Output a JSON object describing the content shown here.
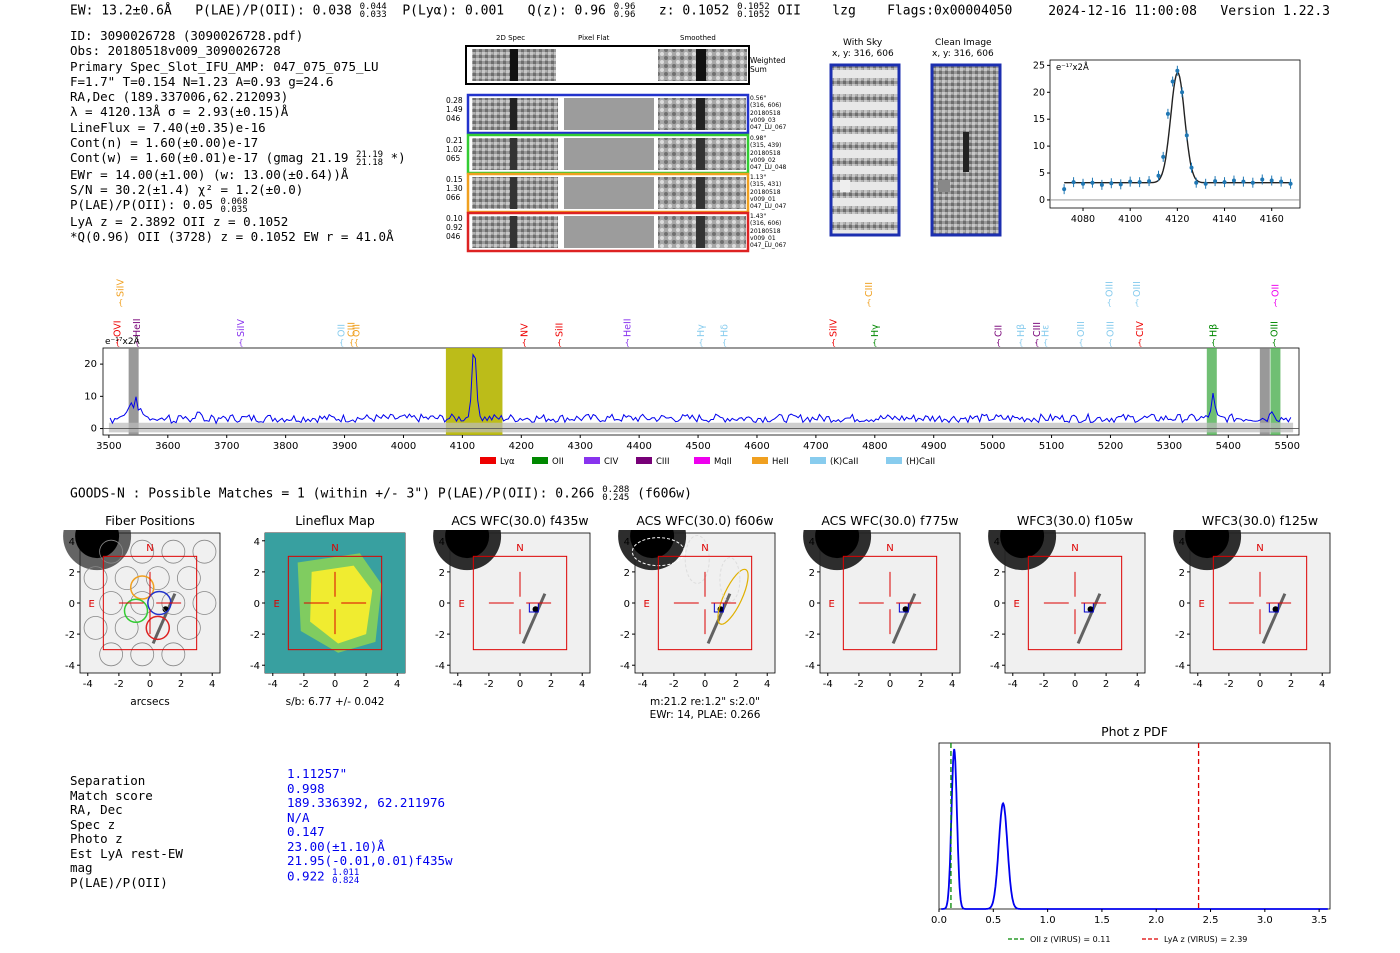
{
  "header": {
    "ew": "EW: 13.2±0.6Å",
    "plae_label": "P(LAE)/P(OII): 0.038",
    "plae_hi": "0.044",
    "plae_lo": "0.033",
    "plya": "P(Lyα): 0.001",
    "qz_label": "Q(z): 0.96",
    "qz_hi": "0.96",
    "qz_lo": "0.96",
    "z_label": "z: 0.1052",
    "z_hi": "0.1052",
    "z_lo": "0.1052",
    "z_line": "OII",
    "lzg": "lzg",
    "flags": "Flags:0x00004050",
    "datetime": "2024-12-16 11:00:08",
    "version": "Version 1.22.3"
  },
  "info": {
    "id": "ID: 3090026728 (3090026728.pdf)",
    "obs": "Obs: 20180518v009_3090026728",
    "primary": "Primary Spec_Slot_IFU_AMP: 047_075_075_LU",
    "fwhm": "F=1.7\"  T=0.154  N=1.23  A=0.93  g=24.6",
    "radec": "RA,Dec (189.337006,62.212093)",
    "lambda": "λ = 4120.13Å  σ = 2.93(±0.15)Å",
    "lineflux": "LineFlux = 7.40(±0.35)e-16",
    "cont_n": "Cont(n) = 1.60(±0.00)e-17",
    "cont_w": "Cont(w) = 1.60(±0.01)e-17 (gmag 21.19",
    "cont_w_hi": "21.19",
    "cont_w_lo": "21.18",
    "cont_w_end": "*)",
    "ewr": "EWr = 14.00(±1.00) (w: 13.00(±0.64))Å",
    "sn": "S/N = 30.2(±1.4)  χ² = 1.2(±0.0)",
    "plae": "P(LAE)/P(OII): 0.05",
    "plae_hi": "0.068",
    "plae_lo": "0.035",
    "lya": "LyA z = 2.3892  OII z = 0.1052",
    "q": "*Q(0.96) OII (3728) z = 0.1052  EW r = 41.0Å"
  },
  "cutouts": {
    "col_2d": "2D Spec",
    "col_flat": "Pixel Flat",
    "col_smooth": "Smoothed",
    "weighted": "Weighted Sum",
    "rows": [
      {
        "left": [
          "0.28",
          "1.49",
          "046"
        ],
        "right": [
          "0.56\"",
          "(316, 606)",
          "20180518",
          "v009_03",
          "047_LU_067"
        ],
        "color": "#2233cc"
      },
      {
        "left": [
          "0.21",
          "1.02",
          "065"
        ],
        "right": [
          "0.98\"",
          "(315, 439)",
          "20180518",
          "v009_02",
          "047_LU_048"
        ],
        "color": "#33cc33"
      },
      {
        "left": [
          "0.15",
          "1.30",
          "066"
        ],
        "right": [
          "1.13\"",
          "(315, 431)",
          "20180518",
          "v009_01",
          "047_LU_047"
        ],
        "color": "#f0a020"
      },
      {
        "left": [
          "0.10",
          "0.92",
          "046"
        ],
        "right": [
          "1.43\"",
          "(316, 606)",
          "20180518",
          "v009_01",
          "047_LU_067"
        ],
        "color": "#dd2222"
      }
    ],
    "with_sky": "With Sky",
    "with_sky_xy": "x, y: 316, 606",
    "clean": "Clean Image",
    "clean_xy": "x, y: 316, 606"
  },
  "zoom_chart": {
    "unit_label": "e⁻¹⁷x2Å",
    "x_ticks": [
      "4080",
      "4100",
      "4120",
      "4140",
      "4160"
    ],
    "y_ticks": [
      "0",
      "5",
      "10",
      "15",
      "20",
      "25"
    ]
  },
  "spectrum": {
    "unit_label": "e⁻¹⁷x2Å",
    "x_ticks": [
      "3500",
      "3600",
      "3700",
      "3800",
      "3900",
      "4000",
      "4100",
      "4200",
      "4300",
      "4400",
      "4500",
      "4600",
      "4700",
      "4800",
      "4900",
      "5000",
      "5100",
      "5200",
      "5300",
      "5400",
      "5500"
    ],
    "y_ticks": [
      "0",
      "10",
      "20"
    ],
    "legend": [
      "Lyα",
      "OII",
      "CIV",
      "CIII",
      "MgII",
      "HeII",
      "(K)CaII",
      "(H)CaII"
    ],
    "legend_colors": [
      "#ee0000",
      "#008800",
      "#8833ee",
      "#770077",
      "#ee00ee",
      "#f0a020",
      "#88ccee",
      "#88ccee"
    ],
    "line_labels": [
      {
        "name": "SiIV",
        "w": 3520,
        "row": 0,
        "color": "#f0a020"
      },
      {
        "name": "OVI",
        "w": 3515,
        "row": 1,
        "color": "#ee0000"
      },
      {
        "name": "HeII",
        "w": 3548,
        "row": 1,
        "color": "#770077"
      },
      {
        "name": "SiIV",
        "w": 3724,
        "row": 1,
        "color": "#8833ee"
      },
      {
        "name": "OII",
        "w": 3895,
        "row": 1,
        "color": "#88ccee"
      },
      {
        "name": "CIII",
        "w": 3912,
        "row": 1,
        "color": "#f0a020"
      },
      {
        "name": "OII",
        "w": 3920,
        "row": 1,
        "color": "#f0a020"
      },
      {
        "name": "NV",
        "w": 4205,
        "row": 1,
        "color": "#ee0000"
      },
      {
        "name": "SiII",
        "w": 4265,
        "row": 1,
        "color": "#ee0000"
      },
      {
        "name": "HeII",
        "w": 4380,
        "row": 1,
        "color": "#8833ee"
      },
      {
        "name": "Hγ",
        "w": 4505,
        "row": 1,
        "color": "#88ccee"
      },
      {
        "name": "Hδ",
        "w": 4545,
        "row": 1,
        "color": "#88ccee"
      },
      {
        "name": "SiIV",
        "w": 4730,
        "row": 1,
        "color": "#ee0000"
      },
      {
        "name": "CIII",
        "w": 4790,
        "row": 0,
        "color": "#f0a020"
      },
      {
        "name": "Hγ",
        "w": 4800,
        "row": 1,
        "color": "#008800"
      },
      {
        "name": "CII",
        "w": 5010,
        "row": 1,
        "color": "#770077"
      },
      {
        "name": "Hβ",
        "w": 5048,
        "row": 1,
        "color": "#88ccee"
      },
      {
        "name": "CIII",
        "w": 5075,
        "row": 1,
        "color": "#770077"
      },
      {
        "name": "Hε",
        "w": 5090,
        "row": 1,
        "color": "#88ccee"
      },
      {
        "name": "OIII",
        "w": 5150,
        "row": 1,
        "color": "#88ccee"
      },
      {
        "name": "OIII",
        "w": 5198,
        "row": 0,
        "color": "#88ccee"
      },
      {
        "name": "OIII",
        "w": 5200,
        "row": 1,
        "color": "#88ccee"
      },
      {
        "name": "OIII",
        "w": 5245,
        "row": 0,
        "color": "#88ccee"
      },
      {
        "name": "CIV",
        "w": 5250,
        "row": 1,
        "color": "#ee0000"
      },
      {
        "name": "Hβ",
        "w": 5375,
        "row": 1,
        "color": "#008800"
      },
      {
        "name": "OII",
        "w": 5480,
        "row": 0,
        "color": "#ee00ee"
      },
      {
        "name": "OIII",
        "w": 5478,
        "row": 1,
        "color": "#008800"
      }
    ]
  },
  "goods": {
    "text": "GOODS-N : Possible Matches = 1 (within +/- 3\")  P(LAE)/P(OII): 0.266",
    "hi": "0.288",
    "lo": "0.245",
    "band": "(f606w)"
  },
  "panels": [
    {
      "title": "Fiber Positions",
      "sub": "arcsecs"
    },
    {
      "title": "Lineflux Map",
      "sub": "s/b: 6.77 +/- 0.042"
    },
    {
      "title": "ACS WFC(30.0) f435w",
      "sub": ""
    },
    {
      "title": "ACS WFC(30.0) f606w",
      "sub": "m:21.2  re:1.2\"  s:2.0\"",
      "sub2": "EWr: 14, PLAE: 0.266"
    },
    {
      "title": "ACS WFC(30.0) f775w",
      "sub": ""
    },
    {
      "title": "WFC3(30.0) f105w",
      "sub": ""
    },
    {
      "title": "WFC3(30.0) f125w",
      "sub": ""
    }
  ],
  "panel_axis": {
    "ticks": [
      "-4",
      "-2",
      "0",
      "2",
      "4"
    ],
    "y_ticks": [
      "4",
      "2",
      "0",
      "-2",
      "-4"
    ],
    "north": "N",
    "east": "E"
  },
  "match_table": {
    "labels": [
      "Separation",
      "Match score",
      "RA, Dec",
      "Spec z",
      "Photo z",
      "Est LyA rest-EW",
      "mag",
      "P(LAE)/P(OII)"
    ],
    "values": [
      "1.11257\"",
      "0.998",
      "189.336392, 62.211976",
      "N/A",
      "0.147",
      "23.00(±1.10)Å",
      "21.95(-0.01,0.01)f435w",
      "0.922"
    ],
    "plae_hi": "1.011",
    "plae_lo": "0.824"
  },
  "chart_data": [
    {
      "type": "line",
      "title": "Phot z PDF",
      "xlabel": "",
      "ylabel": "",
      "xlim": [
        0,
        3.6
      ],
      "x_ticks": [
        "0.0",
        "0.5",
        "1.0",
        "1.5",
        "2.0",
        "2.5",
        "3.0",
        "3.5"
      ],
      "series": [
        {
          "name": "Phot z PDF",
          "peaks": [
            {
              "x": 0.14,
              "height": 1.0,
              "width": 0.025
            },
            {
              "x": 0.59,
              "height": 0.66,
              "width": 0.04
            }
          ]
        }
      ],
      "vlines": [
        {
          "x": 0.11,
          "label": "OII z (VIRUS) = 0.11",
          "color": "#008800"
        },
        {
          "x": 2.39,
          "label": "LyA z (VIRUS) = 2.39",
          "color": "#dd0000"
        }
      ]
    },
    {
      "type": "line",
      "title": "",
      "x": [
        4072,
        4076,
        4080,
        4084,
        4088,
        4092,
        4096,
        4100,
        4104,
        4108,
        4112,
        4114,
        4116,
        4118,
        4120,
        4122,
        4124,
        4126,
        4128,
        4132,
        4136,
        4140,
        4144,
        4148,
        4152,
        4156,
        4160,
        4164,
        4168
      ],
      "y": [
        2.0,
        3.3,
        3.0,
        3.2,
        2.8,
        3.1,
        2.9,
        3.4,
        3.3,
        3.5,
        4.5,
        8,
        16,
        22,
        24,
        20,
        12,
        6,
        3.2,
        3.0,
        3.5,
        3.3,
        3.6,
        3.4,
        3.2,
        3.8,
        3.6,
        3.4,
        3.0
      ],
      "fit": {
        "amplitude": 20.5,
        "center": 4120.13,
        "sigma": 2.93,
        "continuum": 3.2
      },
      "xlim": [
        4066,
        4172
      ],
      "ylim": [
        -1.5,
        26
      ]
    },
    {
      "type": "line",
      "title": "Spectrum",
      "xlim": [
        3490,
        5520
      ],
      "ylim": [
        -2,
        25
      ],
      "continuum": 3.2,
      "emission": [
        {
          "w": 4120,
          "amp": 21,
          "sigma": 4
        },
        {
          "w": 3542,
          "amp": 5,
          "sigma": 10
        },
        {
          "w": 5374,
          "amp": 7,
          "sigma": 3
        },
        {
          "w": 5475,
          "amp": 3,
          "sigma": 3
        }
      ],
      "highlight_bands": [
        {
          "from": 4072,
          "to": 4168,
          "color": "#b5b500"
        }
      ],
      "line_marks": [
        {
          "w": 3542,
          "color": "#808080"
        },
        {
          "w": 5372,
          "color": "#4caf50"
        },
        {
          "w": 5462,
          "color": "#808080"
        },
        {
          "w": 5480,
          "color": "#4caf50"
        }
      ]
    }
  ]
}
